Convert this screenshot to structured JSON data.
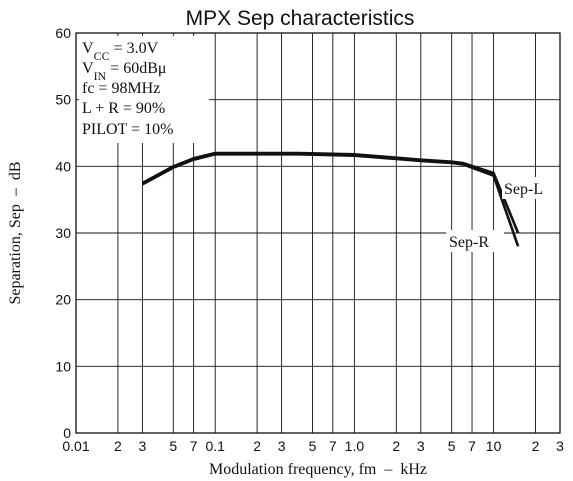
{
  "chart_data": {
    "type": "line",
    "title": "MPX Sep characteristics",
    "xlabel": "Modulation frequency, fm  –  kHz",
    "ylabel": "Separation, Sep  –  dB",
    "x_scale": "log",
    "xlim": [
      0.01,
      30
    ],
    "ylim": [
      0,
      60
    ],
    "grid": true,
    "x_ticks": [
      {
        "value": 0.01,
        "label": "0.01"
      },
      {
        "value": 0.02,
        "label": "2"
      },
      {
        "value": 0.03,
        "label": "3"
      },
      {
        "value": 0.05,
        "label": "5"
      },
      {
        "value": 0.07,
        "label": "7"
      },
      {
        "value": 0.1,
        "label": "0.1"
      },
      {
        "value": 0.2,
        "label": "2"
      },
      {
        "value": 0.3,
        "label": "3"
      },
      {
        "value": 0.5,
        "label": "5"
      },
      {
        "value": 0.7,
        "label": "7"
      },
      {
        "value": 1.0,
        "label": "1.0"
      },
      {
        "value": 2,
        "label": "2"
      },
      {
        "value": 3,
        "label": "3"
      },
      {
        "value": 5,
        "label": "5"
      },
      {
        "value": 7,
        "label": "7"
      },
      {
        "value": 10,
        "label": "10"
      },
      {
        "value": 20,
        "label": "2"
      },
      {
        "value": 30,
        "label": "3"
      }
    ],
    "y_ticks": [
      {
        "value": 0,
        "label": "0"
      },
      {
        "value": 10,
        "label": "10"
      },
      {
        "value": 20,
        "label": "20"
      },
      {
        "value": 30,
        "label": "30"
      },
      {
        "value": 40,
        "label": "40"
      },
      {
        "value": 50,
        "label": "50"
      },
      {
        "value": 60,
        "label": "60"
      }
    ],
    "conditions": {
      "vcc": {
        "main": "V",
        "sub": "CC",
        "rest": " = 3.0V"
      },
      "vin": {
        "main": "V",
        "sub": "IN",
        "rest": " = 60dBμ"
      },
      "fc": "fc = 98MHz",
      "lr": "L + R = 90%",
      "pilot": "PILOT = 10%"
    },
    "series": [
      {
        "name": "Sep-L",
        "x": [
          0.03,
          0.05,
          0.07,
          0.1,
          0.2,
          0.4,
          1.0,
          2.0,
          3.0,
          5.0,
          6.0,
          10.0,
          15.0
        ],
        "y": [
          37.5,
          40.0,
          41.2,
          42.0,
          42.0,
          42.0,
          41.8,
          41.3,
          41.0,
          40.7,
          40.5,
          39.0,
          30.0
        ]
      },
      {
        "name": "Sep-R",
        "x": [
          0.03,
          0.05,
          0.07,
          0.1,
          0.2,
          0.4,
          1.0,
          2.0,
          3.0,
          5.0,
          6.0,
          10.0,
          15.0
        ],
        "y": [
          37.3,
          39.8,
          41.0,
          41.8,
          41.8,
          41.8,
          41.6,
          41.1,
          40.8,
          40.5,
          40.3,
          38.6,
          28.0
        ]
      }
    ]
  }
}
